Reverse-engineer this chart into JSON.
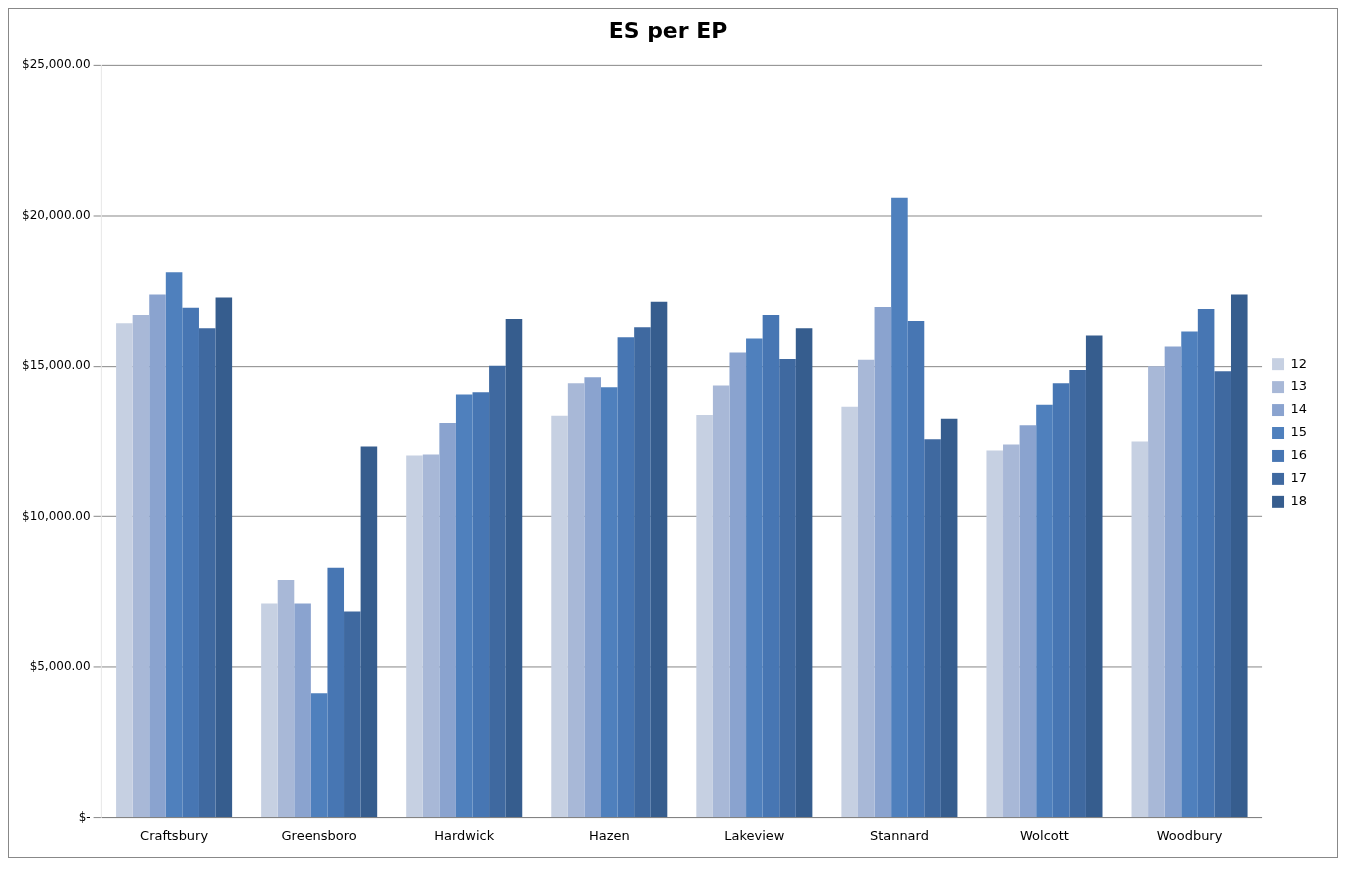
{
  "chart_data": {
    "type": "bar",
    "title": "ES per EP",
    "categories": [
      "Craftsbury",
      "Greensboro",
      "Hardwick",
      "Hazen",
      "Lakeview",
      "Stannard",
      "Wolcott",
      "Woodbury"
    ],
    "series": [
      {
        "name": "12",
        "color": "#c6d0e2",
        "values": [
          16430,
          7110,
          12030,
          13350,
          13380,
          13650,
          12200,
          12500
        ]
      },
      {
        "name": "13",
        "color": "#a8b8d7",
        "values": [
          16700,
          7890,
          12060,
          14430,
          14360,
          15210,
          12400,
          15000
        ]
      },
      {
        "name": "14",
        "color": "#8aa3cf",
        "values": [
          17380,
          7110,
          13110,
          14630,
          15450,
          16970,
          13040,
          15650
        ]
      },
      {
        "name": "15",
        "color": "#4f80bd",
        "values": [
          18120,
          4130,
          14060,
          14300,
          15920,
          20600,
          13720,
          16150
        ]
      },
      {
        "name": "16",
        "color": "#4776b3",
        "values": [
          16940,
          8300,
          14130,
          15960,
          16700,
          16500,
          14430,
          16900
        ]
      },
      {
        "name": "17",
        "color": "#3f69a0",
        "values": [
          16260,
          6850,
          15010,
          16290,
          15240,
          12570,
          14870,
          14830
        ]
      },
      {
        "name": "18",
        "color": "#365d8e",
        "values": [
          17280,
          12330,
          16570,
          17140,
          16260,
          13250,
          16020,
          17380
        ]
      }
    ],
    "ylim": [
      0,
      25000
    ],
    "yticks": [
      {
        "value": 0,
        "label": "$-"
      },
      {
        "value": 5000,
        "label": "$5,000.00"
      },
      {
        "value": 10000,
        "label": "$10,000.00"
      },
      {
        "value": 15000,
        "label": "$15,000.00"
      },
      {
        "value": 20000,
        "label": "$20,000.00"
      },
      {
        "value": 25000,
        "label": "$25,000.00"
      }
    ],
    "grid": "y",
    "legend": "right"
  }
}
